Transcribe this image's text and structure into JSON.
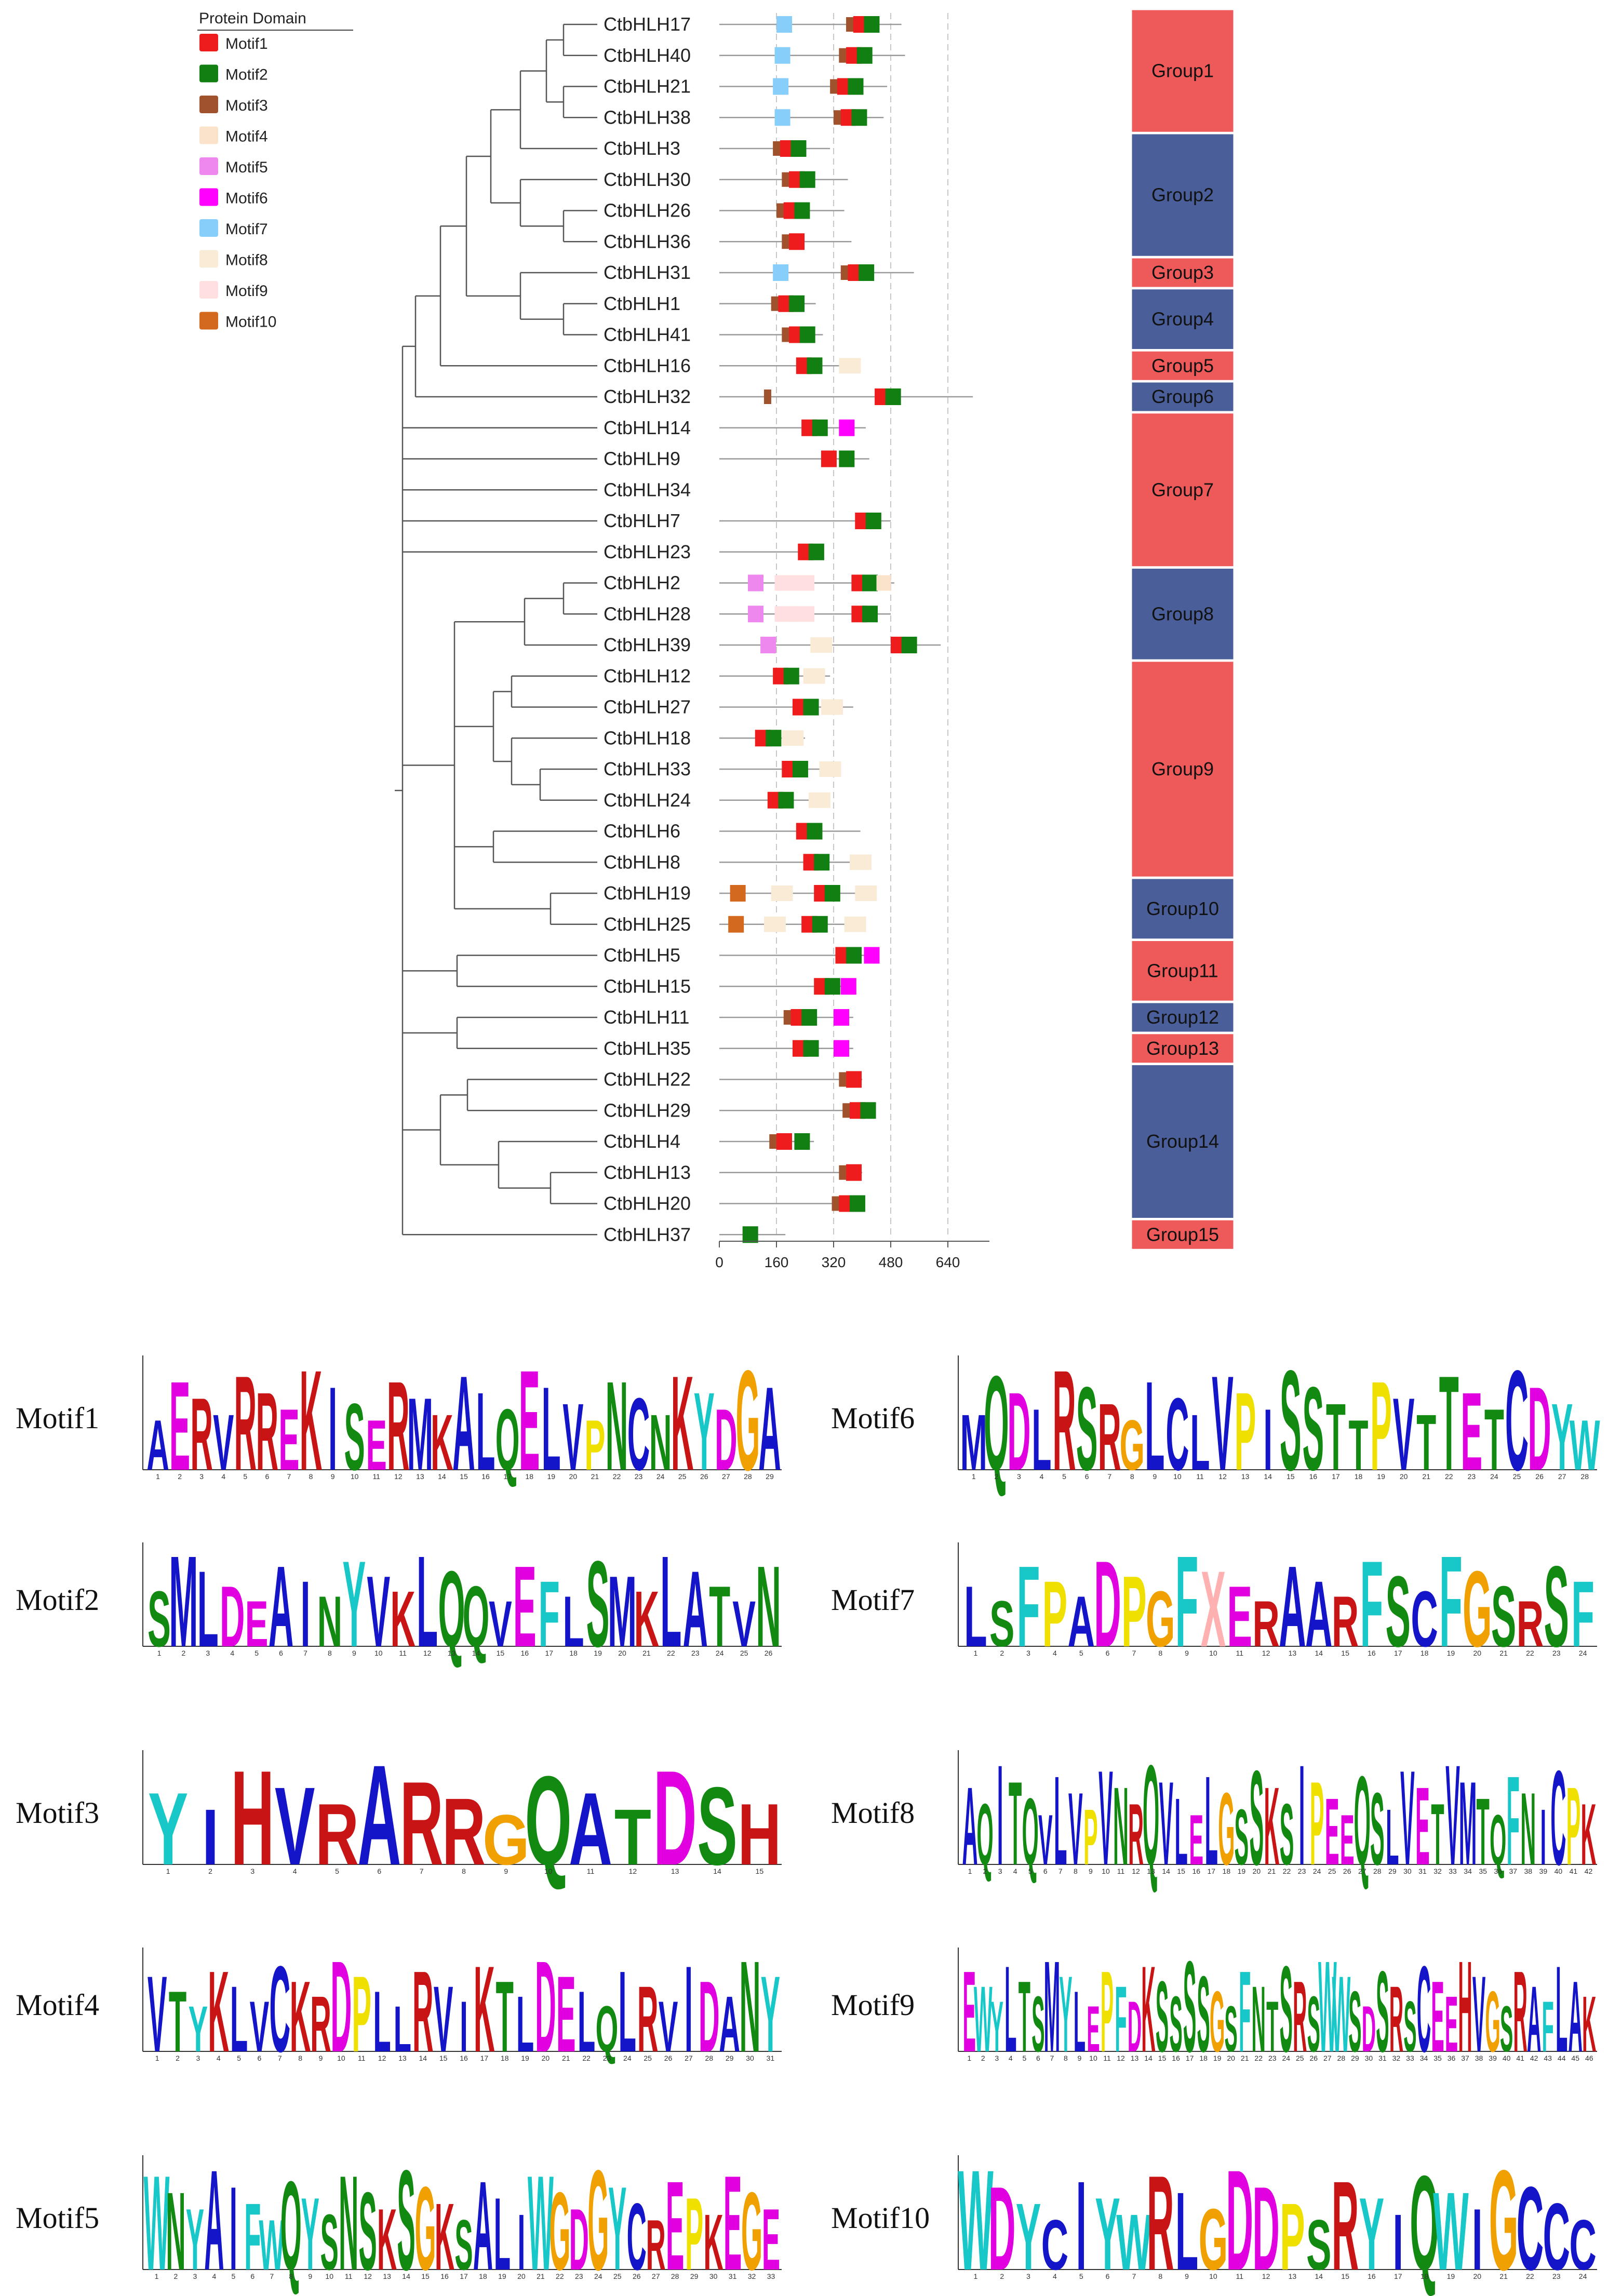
{
  "legend": {
    "title": "Protein Domain",
    "items": [
      {
        "name": "Motif1",
        "color": "#ee1c1c"
      },
      {
        "name": "Motif2",
        "color": "#127f12"
      },
      {
        "name": "Motif3",
        "color": "#a0522d"
      },
      {
        "name": "Motif4",
        "color": "#fbe3cb"
      },
      {
        "name": "Motif5",
        "color": "#ee88ee"
      },
      {
        "name": "Motif6",
        "color": "#ff00ff"
      },
      {
        "name": "Motif7",
        "color": "#87cefa"
      },
      {
        "name": "Motif8",
        "color": "#faebd7"
      },
      {
        "name": "Motif9",
        "color": "#ffdfdf"
      },
      {
        "name": "Motif10",
        "color": "#d2691e"
      }
    ]
  },
  "axis": {
    "ticks": [
      0,
      160,
      320,
      480,
      640
    ],
    "max": 640
  },
  "genes": [
    {
      "name": "CtbHLH17",
      "len": 510,
      "motifs": [
        [
          "Motif7",
          160
        ],
        [
          "Motif3",
          355
        ],
        [
          "Motif1",
          375
        ],
        [
          "Motif2",
          405
        ]
      ]
    },
    {
      "name": "CtbHLH40",
      "len": 520,
      "motifs": [
        [
          "Motif7",
          155
        ],
        [
          "Motif3",
          335
        ],
        [
          "Motif1",
          355
        ],
        [
          "Motif2",
          385
        ]
      ]
    },
    {
      "name": "CtbHLH21",
      "len": 470,
      "motifs": [
        [
          "Motif7",
          150
        ],
        [
          "Motif3",
          310
        ],
        [
          "Motif1",
          330
        ],
        [
          "Motif2",
          360
        ]
      ]
    },
    {
      "name": "CtbHLH38",
      "len": 460,
      "motifs": [
        [
          "Motif7",
          155
        ],
        [
          "Motif3",
          320
        ],
        [
          "Motif1",
          340
        ],
        [
          "Motif2",
          370
        ]
      ]
    },
    {
      "name": "CtbHLH3",
      "len": 310,
      "motifs": [
        [
          "Motif3",
          150
        ],
        [
          "Motif1",
          170
        ],
        [
          "Motif2",
          200
        ]
      ]
    },
    {
      "name": "CtbHLH30",
      "len": 360,
      "motifs": [
        [
          "Motif3",
          175
        ],
        [
          "Motif1",
          195
        ],
        [
          "Motif2",
          225
        ]
      ]
    },
    {
      "name": "CtbHLH26",
      "len": 350,
      "motifs": [
        [
          "Motif3",
          160
        ],
        [
          "Motif1",
          180
        ],
        [
          "Motif2",
          210
        ]
      ]
    },
    {
      "name": "CtbHLH36",
      "len": 370,
      "motifs": [
        [
          "Motif3",
          175
        ],
        [
          "Motif1",
          195
        ]
      ]
    },
    {
      "name": "CtbHLH31",
      "len": 545,
      "motifs": [
        [
          "Motif7",
          150
        ],
        [
          "Motif3",
          340
        ],
        [
          "Motif1",
          360
        ],
        [
          "Motif2",
          390
        ]
      ]
    },
    {
      "name": "CtbHLH1",
      "len": 270,
      "motifs": [
        [
          "Motif3",
          145
        ],
        [
          "Motif1",
          165
        ],
        [
          "Motif2",
          195
        ]
      ]
    },
    {
      "name": "CtbHLH41",
      "len": 290,
      "motifs": [
        [
          "Motif3",
          175
        ],
        [
          "Motif1",
          195
        ],
        [
          "Motif2",
          225
        ]
      ]
    },
    {
      "name": "CtbHLH16",
      "len": 355,
      "motifs": [
        [
          "Motif1",
          215
        ],
        [
          "Motif2",
          245
        ],
        [
          "Motif8",
          335
        ]
      ]
    },
    {
      "name": "CtbHLH32",
      "len": 710,
      "motifs": [
        [
          "Motif3",
          125
        ],
        [
          "Motif1",
          435
        ],
        [
          "Motif2",
          465
        ]
      ]
    },
    {
      "name": "CtbHLH14",
      "len": 410,
      "motifs": [
        [
          "Motif1",
          230
        ],
        [
          "Motif2",
          260
        ],
        [
          "Motif6",
          335
        ]
      ]
    },
    {
      "name": "CtbHLH9",
      "len": 420,
      "motifs": [
        [
          "Motif1",
          285
        ],
        [
          "Motif2",
          335
        ]
      ]
    },
    {
      "name": "CtbHLH34",
      "len": 0,
      "motifs": []
    },
    {
      "name": "CtbHLH7",
      "len": 480,
      "motifs": [
        [
          "Motif1",
          380
        ],
        [
          "Motif2",
          410
        ]
      ]
    },
    {
      "name": "CtbHLH23",
      "len": 270,
      "motifs": [
        [
          "Motif1",
          220
        ],
        [
          "Motif2",
          250
        ]
      ]
    },
    {
      "name": "CtbHLH2",
      "len": 490,
      "motifs": [
        [
          "Motif5",
          80
        ],
        [
          "Motif9",
          155
        ],
        [
          "Motif9",
          205
        ],
        [
          "Motif1",
          370
        ],
        [
          "Motif2",
          400
        ],
        [
          "Motif4",
          440
        ]
      ]
    },
    {
      "name": "CtbHLH28",
      "len": 480,
      "motifs": [
        [
          "Motif5",
          80
        ],
        [
          "Motif9",
          155
        ],
        [
          "Motif9",
          205
        ],
        [
          "Motif1",
          370
        ],
        [
          "Motif2",
          400
        ]
      ]
    },
    {
      "name": "CtbHLH39",
      "len": 620,
      "motifs": [
        [
          "Motif5",
          115
        ],
        [
          "Motif8",
          255
        ],
        [
          "Motif1",
          480
        ],
        [
          "Motif2",
          510
        ]
      ]
    },
    {
      "name": "CtbHLH12",
      "len": 310,
      "motifs": [
        [
          "Motif1",
          150
        ],
        [
          "Motif2",
          180
        ],
        [
          "Motif8",
          235
        ]
      ]
    },
    {
      "name": "CtbHLH27",
      "len": 375,
      "motifs": [
        [
          "Motif1",
          205
        ],
        [
          "Motif2",
          235
        ],
        [
          "Motif8",
          285
        ]
      ]
    },
    {
      "name": "CtbHLH18",
      "len": 240,
      "motifs": [
        [
          "Motif1",
          100
        ],
        [
          "Motif2",
          130
        ],
        [
          "Motif8",
          175
        ]
      ]
    },
    {
      "name": "CtbHLH33",
      "len": 330,
      "motifs": [
        [
          "Motif1",
          175
        ],
        [
          "Motif2",
          205
        ],
        [
          "Motif8",
          280
        ]
      ]
    },
    {
      "name": "CtbHLH24",
      "len": 310,
      "motifs": [
        [
          "Motif1",
          135
        ],
        [
          "Motif2",
          165
        ],
        [
          "Motif8",
          250
        ]
      ]
    },
    {
      "name": "CtbHLH6",
      "len": 395,
      "motifs": [
        [
          "Motif1",
          215
        ],
        [
          "Motif2",
          245
        ]
      ]
    },
    {
      "name": "CtbHLH8",
      "len": 420,
      "motifs": [
        [
          "Motif1",
          235
        ],
        [
          "Motif2",
          265
        ],
        [
          "Motif8",
          365
        ]
      ]
    },
    {
      "name": "CtbHLH19",
      "len": 435,
      "motifs": [
        [
          "Motif10",
          30
        ],
        [
          "Motif8",
          145
        ],
        [
          "Motif1",
          265
        ],
        [
          "Motif2",
          295
        ],
        [
          "Motif8",
          380
        ]
      ]
    },
    {
      "name": "CtbHLH25",
      "len": 410,
      "motifs": [
        [
          "Motif10",
          25
        ],
        [
          "Motif8",
          125
        ],
        [
          "Motif1",
          230
        ],
        [
          "Motif2",
          260
        ],
        [
          "Motif8",
          350
        ]
      ]
    },
    {
      "name": "CtbHLH5",
      "len": 420,
      "motifs": [
        [
          "Motif1",
          325
        ],
        [
          "Motif2",
          355
        ],
        [
          "Motif6",
          405
        ]
      ]
    },
    {
      "name": "CtbHLH15",
      "len": 360,
      "motifs": [
        [
          "Motif1",
          265
        ],
        [
          "Motif2",
          295
        ],
        [
          "Motif6",
          340
        ]
      ]
    },
    {
      "name": "CtbHLH11",
      "len": 375,
      "motifs": [
        [
          "Motif3",
          180
        ],
        [
          "Motif1",
          200
        ],
        [
          "Motif2",
          230
        ],
        [
          "Motif6",
          320
        ]
      ]
    },
    {
      "name": "CtbHLH35",
      "len": 375,
      "motifs": [
        [
          "Motif1",
          205
        ],
        [
          "Motif2",
          235
        ],
        [
          "Motif6",
          320
        ]
      ]
    },
    {
      "name": "CtbHLH22",
      "len": 400,
      "motifs": [
        [
          "Motif3",
          335
        ],
        [
          "Motif1",
          355
        ]
      ]
    },
    {
      "name": "CtbHLH29",
      "len": 400,
      "motifs": [
        [
          "Motif3",
          345
        ],
        [
          "Motif1",
          365
        ],
        [
          "Motif2",
          395
        ]
      ]
    },
    {
      "name": "CtbHLH4",
      "len": 265,
      "motifs": [
        [
          "Motif3",
          140
        ],
        [
          "Motif1",
          160
        ],
        [
          "Motif2",
          210
        ]
      ]
    },
    {
      "name": "CtbHLH13",
      "len": 400,
      "motifs": [
        [
          "Motif3",
          335
        ],
        [
          "Motif1",
          355
        ]
      ]
    },
    {
      "name": "CtbHLH20",
      "len": 380,
      "motifs": [
        [
          "Motif3",
          315
        ],
        [
          "Motif1",
          335
        ],
        [
          "Motif2",
          365
        ]
      ]
    },
    {
      "name": "CtbHLH37",
      "len": 185,
      "motifs": [
        [
          "Motif2",
          65
        ]
      ]
    }
  ],
  "groups": [
    {
      "label": "Group1",
      "from": 0,
      "to": 3,
      "color": "#ee5a5a"
    },
    {
      "label": "Group2",
      "from": 4,
      "to": 7,
      "color": "#4a5f9a"
    },
    {
      "label": "Group3",
      "from": 8,
      "to": 8,
      "color": "#ee5a5a"
    },
    {
      "label": "Group4",
      "from": 9,
      "to": 10,
      "color": "#4a5f9a"
    },
    {
      "label": "Group5",
      "from": 11,
      "to": 11,
      "color": "#ee5a5a"
    },
    {
      "label": "Group6",
      "from": 12,
      "to": 12,
      "color": "#4a5f9a"
    },
    {
      "label": "Group7",
      "from": 13,
      "to": 17,
      "color": "#ee5a5a"
    },
    {
      "label": "Group8",
      "from": 18,
      "to": 20,
      "color": "#4a5f9a"
    },
    {
      "label": "Group9",
      "from": 21,
      "to": 27,
      "color": "#ee5a5a"
    },
    {
      "label": "Group10",
      "from": 28,
      "to": 29,
      "color": "#4a5f9a"
    },
    {
      "label": "Group11",
      "from": 30,
      "to": 31,
      "color": "#ee5a5a"
    },
    {
      "label": "Group12",
      "from": 32,
      "to": 32,
      "color": "#4a5f9a"
    },
    {
      "label": "Group13",
      "from": 33,
      "to": 33,
      "color": "#ee5a5a"
    },
    {
      "label": "Group14",
      "from": 34,
      "to": 38,
      "color": "#4a5f9a"
    },
    {
      "label": "Group15",
      "from": 39,
      "to": 39,
      "color": "#ee5a5a"
    }
  ],
  "logos": [
    {
      "name": "Motif1",
      "seq": "AERVRREKISERMKALQELVPNCNKYDGA"
    },
    {
      "name": "Motif6",
      "seq": "MQDLRSRGLCLVPISSTTPVTTETCDYW"
    },
    {
      "name": "Motif2",
      "seq": "SMLDEAINYVKLQQVEFLSMKLATVN"
    },
    {
      "name": "Motif7",
      "seq": "LSFPADPGFXERAARFSCFGSRSF"
    },
    {
      "name": "Motif3",
      "seq": "YIHVRARRGQATDSH"
    },
    {
      "name": "Motif8",
      "seq": "AQITQVLVPVNRQVLELGSSKSIPEEQSLVETVMTQFNICPK"
    },
    {
      "name": "Motif4",
      "seq": "VTYKLVCKRDPLLRVIKTLDELQLRVIDANY"
    },
    {
      "name": "Motif9",
      "seq": "EWYLTSMYLEPFDKSSSSGSFNTSRSWWSDSRSCEEHVGSRAFLAK"
    },
    {
      "name": "Motif5",
      "seq": "WNYAIFWQYSNSKSGKSALIWGDGYCREPKEGE"
    },
    {
      "name": "Motif10",
      "seq": "WDYCIYWRLGDDPSRYIQWIGCCC"
    }
  ],
  "aa_colors": {
    "hydrophobic": "#1414c8",
    "basic": "#c81414",
    "acidic": "#e000e0",
    "polar": "#128a12",
    "glycine": "#f0a000",
    "proline": "#f0e000",
    "aromatic": "#18c8c8",
    "other": "#ffb0b0"
  }
}
